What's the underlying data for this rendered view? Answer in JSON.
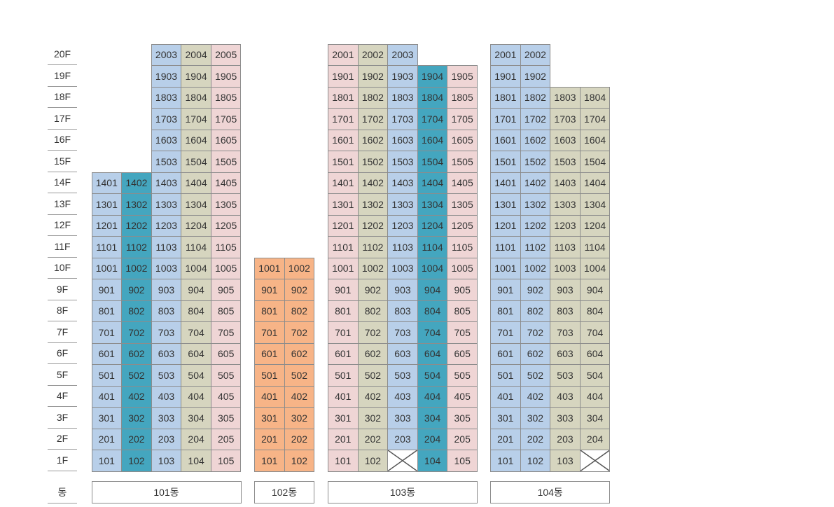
{
  "floor_labels": [
    "20F",
    "19F",
    "18F",
    "17F",
    "16F",
    "15F",
    "14F",
    "13F",
    "12F",
    "11F",
    "10F",
    "9F",
    "8F",
    "7F",
    "6F",
    "5F",
    "4F",
    "3F",
    "2F",
    "1F"
  ],
  "building_row_label": "동",
  "colors": {
    "blue": "#b8cfe9",
    "teal": "#44a6bf",
    "beige": "#d6d5bf",
    "pink": "#efd5d5",
    "orange": "#f7b487",
    "border": "#8c8c8c"
  },
  "buildings": [
    {
      "name": "101동",
      "columns": [
        {
          "line": "01",
          "color": "blue",
          "floors": 14
        },
        {
          "line": "02",
          "color": "teal",
          "floors": 14
        },
        {
          "line": "03",
          "color": "blue",
          "floors": 20
        },
        {
          "line": "04",
          "color": "beige",
          "floors": 20
        },
        {
          "line": "05",
          "color": "pink",
          "floors": 20
        }
      ],
      "empty_units": []
    },
    {
      "name": "102동",
      "columns": [
        {
          "line": "01",
          "color": "orange",
          "floors": 10
        },
        {
          "line": "02",
          "color": "orange",
          "floors": 10
        }
      ],
      "empty_units": []
    },
    {
      "name": "103동",
      "columns": [
        {
          "line": "01",
          "color": "pink",
          "floors": 20
        },
        {
          "line": "02",
          "color": "beige",
          "floors": 20
        },
        {
          "line": "03",
          "color": "blue",
          "floors": 20
        },
        {
          "line": "04",
          "color": "teal",
          "floors": 19
        },
        {
          "line": "05",
          "color": "pink",
          "floors": 19
        }
      ],
      "empty_units": [
        "103"
      ]
    },
    {
      "name": "104동",
      "columns": [
        {
          "line": "01",
          "color": "blue",
          "floors": 20
        },
        {
          "line": "02",
          "color": "blue",
          "floors": 20
        },
        {
          "line": "03",
          "color": "beige",
          "floors": 18
        },
        {
          "line": "04",
          "color": "beige",
          "floors": 18
        }
      ],
      "empty_units": [
        "104"
      ]
    }
  ]
}
